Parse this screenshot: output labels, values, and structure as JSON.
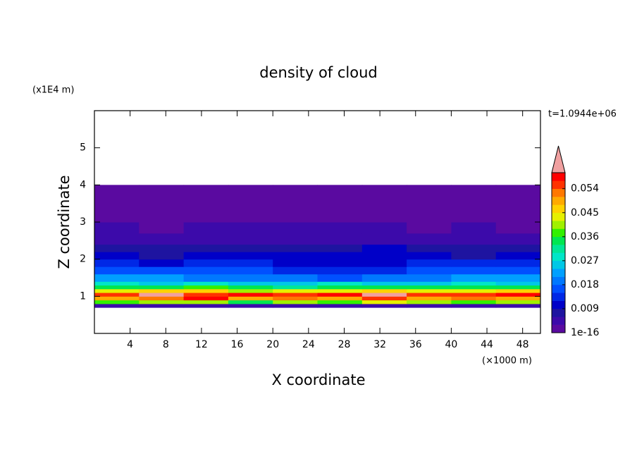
{
  "chart_data": {
    "type": "contour",
    "title": "density of cloud",
    "x_label": "X coordinate",
    "y_label": "Z coordinate",
    "x_unit": "(×1000 m)",
    "y_unit": "(x1E4 m)",
    "annotation": "t=1.0944e+06",
    "xlim": [
      0,
      50
    ],
    "ylim": [
      0,
      6
    ],
    "xticks": [
      4,
      8,
      12,
      16,
      20,
      24,
      28,
      32,
      36,
      40,
      44,
      48
    ],
    "yticks": [
      1,
      2,
      3,
      4,
      5
    ],
    "x_edges": [
      0,
      5,
      10,
      15,
      20,
      25,
      30,
      35,
      40,
      45,
      50
    ],
    "z_edges": [
      0.7,
      0.8,
      0.9,
      1.0,
      1.1,
      1.2,
      1.3,
      1.4,
      1.6,
      1.8,
      2.0,
      2.2,
      2.4,
      2.7,
      3.0,
      3.5,
      4.0
    ],
    "values": [
      [
        0.004,
        0.005,
        0.004,
        0.004,
        0.005,
        0.004,
        0.004,
        0.005,
        0.004,
        0.004
      ],
      [
        0.038,
        0.042,
        0.04,
        0.036,
        0.041,
        0.039,
        0.043,
        0.04,
        0.037,
        0.041
      ],
      [
        0.05,
        0.053,
        0.057,
        0.049,
        0.052,
        0.051,
        0.055,
        0.05,
        0.052,
        0.049
      ],
      [
        0.056,
        0.061,
        0.055,
        0.057,
        0.054,
        0.058,
        0.062,
        0.056,
        0.055,
        0.057
      ],
      [
        0.044,
        0.047,
        0.046,
        0.042,
        0.045,
        0.044,
        0.048,
        0.045,
        0.043,
        0.046
      ],
      [
        0.036,
        0.034,
        0.037,
        0.035,
        0.033,
        0.036,
        0.035,
        0.034,
        0.036,
        0.035
      ],
      [
        0.028,
        0.027,
        0.029,
        0.026,
        0.027,
        0.028,
        0.026,
        0.027,
        0.028,
        0.027
      ],
      [
        0.024,
        0.022,
        0.021,
        0.02,
        0.019,
        0.018,
        0.019,
        0.02,
        0.022,
        0.023
      ],
      [
        0.018,
        0.017,
        0.016,
        0.017,
        0.015,
        0.014,
        0.015,
        0.016,
        0.017,
        0.018
      ],
      [
        0.014,
        0.012,
        0.013,
        0.014,
        0.012,
        0.011,
        0.012,
        0.013,
        0.014,
        0.013
      ],
      [
        0.011,
        0.009,
        0.01,
        0.011,
        0.01,
        0.012,
        0.011,
        0.01,
        0.009,
        0.011
      ],
      [
        0.008,
        0.007,
        0.008,
        0.009,
        0.008,
        0.009,
        0.01,
        0.008,
        0.007,
        0.008
      ],
      [
        0.005,
        0.004,
        0.005,
        0.006,
        0.005,
        0.006,
        0.005,
        0.005,
        0.004,
        0.005
      ],
      [
        0.004,
        0.003,
        0.004,
        0.004,
        0.005,
        0.004,
        0.004,
        0.003,
        0.004,
        0.003
      ],
      [
        0.002,
        0.002,
        0.003,
        0.002,
        0.002,
        0.002,
        0.002,
        0.002,
        0.003,
        0.002
      ],
      [
        0.001,
        0.001,
        0.001,
        0.002,
        0.001,
        0.001,
        0.001,
        0.001,
        0.001,
        0.001
      ]
    ],
    "clim": [
      1e-16,
      0.06
    ],
    "cticks": [
      1e-16,
      0.009,
      0.018,
      0.027,
      0.036,
      0.045,
      0.054
    ],
    "colors": [
      "#5a0aa0",
      "#3c0aaa",
      "#1e14a0",
      "#0000c8",
      "#0028e6",
      "#0050ff",
      "#0078ff",
      "#00a0ff",
      "#00c8e6",
      "#00e6c8",
      "#00e696",
      "#00e650",
      "#32f000",
      "#a0f000",
      "#e6f000",
      "#ffd200",
      "#ffaa00",
      "#ff7800",
      "#ff3200",
      "#ff0000"
    ],
    "extend_color": "#f0a0a0"
  }
}
